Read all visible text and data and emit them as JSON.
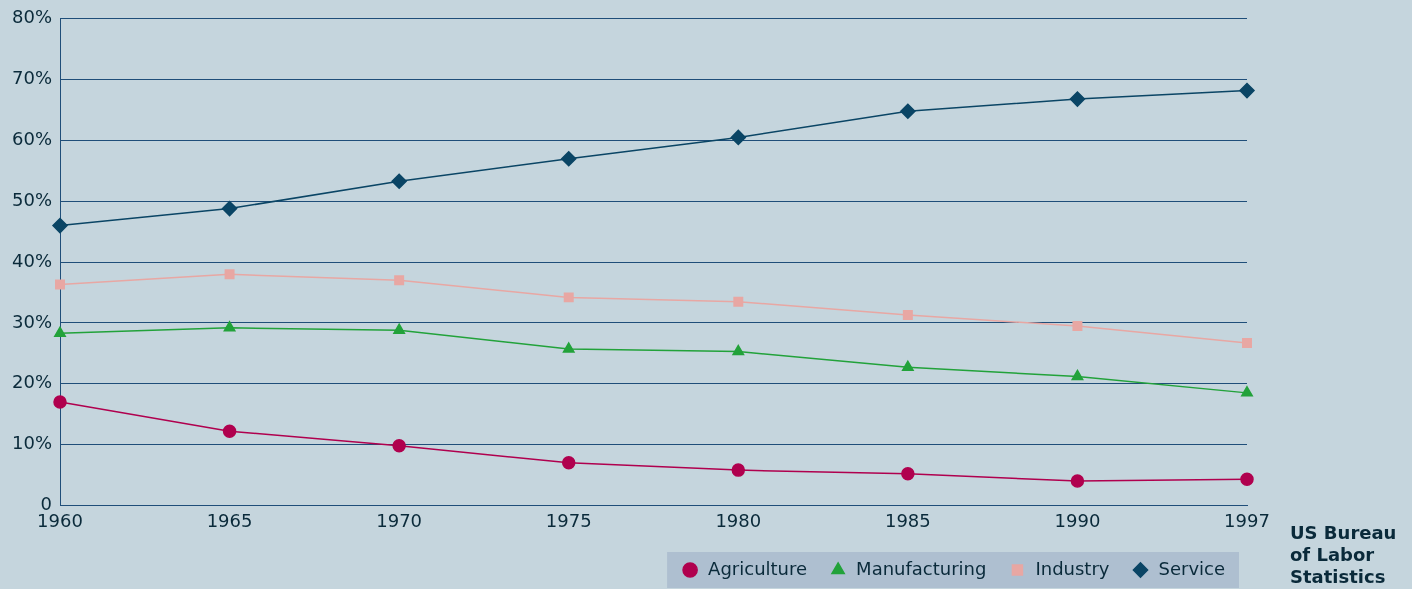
{
  "chart_data": {
    "type": "line",
    "categories": [
      "1960",
      "1965",
      "1970",
      "1975",
      "1980",
      "1985",
      "1990",
      "1997"
    ],
    "ylim": [
      0,
      80
    ],
    "yticks": [
      {
        "value": 0,
        "label": "0"
      },
      {
        "value": 10,
        "label": "10%"
      },
      {
        "value": 20,
        "label": "20%"
      },
      {
        "value": 30,
        "label": "30%"
      },
      {
        "value": 40,
        "label": "40%"
      },
      {
        "value": 50,
        "label": "50%"
      },
      {
        "value": 60,
        "label": "60%"
      },
      {
        "value": 70,
        "label": "70%"
      },
      {
        "value": 80,
        "label": "80%"
      }
    ],
    "grid": "y",
    "legend": "bottom",
    "line_style": "solid",
    "series": [
      {
        "name": "Agriculture",
        "color": "#b0004e",
        "marker": "circle",
        "values": [
          17,
          12.2,
          9.8,
          7,
          5.8,
          5.2,
          4,
          4.3
        ]
      },
      {
        "name": "Manufacturing",
        "color": "#22a23a",
        "marker": "triangle",
        "values": [
          28.3,
          29.2,
          28.8,
          25.7,
          25.3,
          22.7,
          21.2,
          18.5
        ]
      },
      {
        "name": "Industry",
        "color": "#e8a7a3",
        "marker": "square",
        "values": [
          36.3,
          38,
          37,
          34.2,
          33.5,
          31.3,
          29.5,
          26.7
        ]
      },
      {
        "name": "Service",
        "color": "#0a4565",
        "marker": "diamond",
        "values": [
          46,
          48.8,
          53.3,
          57,
          60.5,
          64.8,
          66.8,
          68.2
        ]
      }
    ],
    "annotations": [
      "US Bureau of Labor Statistics"
    ]
  }
}
